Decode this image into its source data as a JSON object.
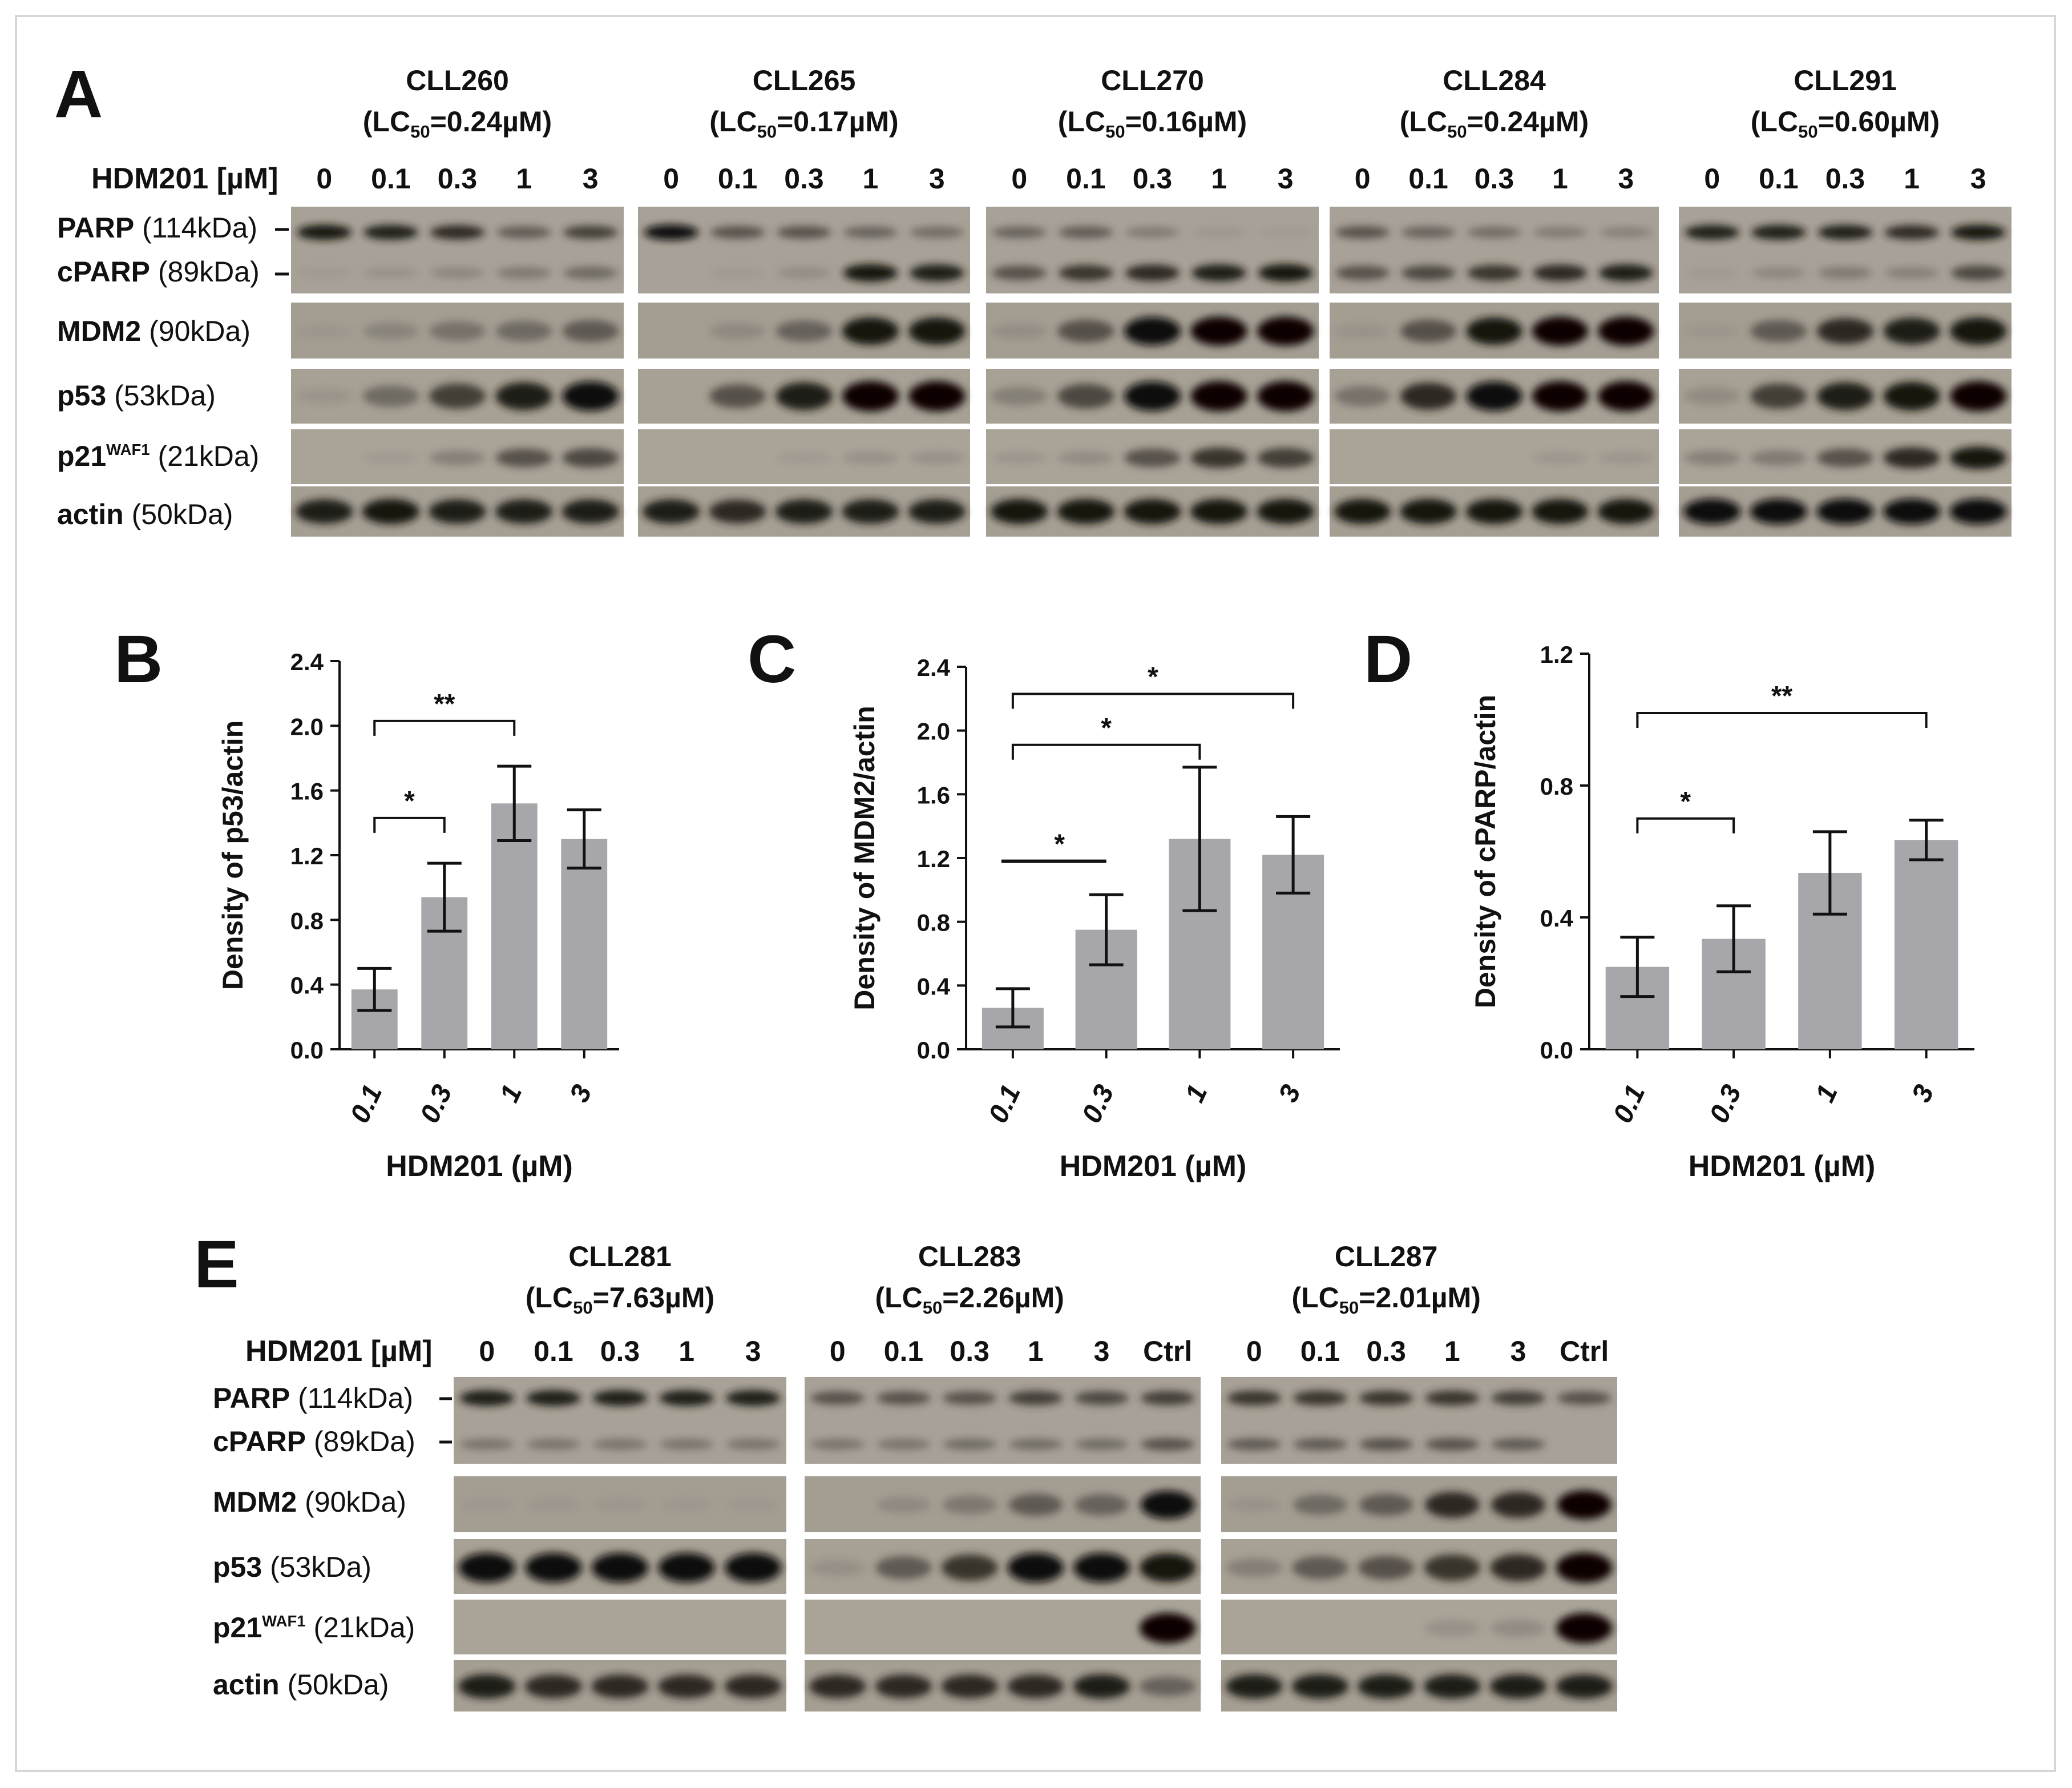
{
  "panel_letters": [
    "A",
    "B",
    "C",
    "D",
    "E"
  ],
  "markers": {
    "parp": {
      "name": "PARP",
      "mw": "(114kDa)"
    },
    "cparp": {
      "name": "cPARP",
      "mw": "(89kDa)"
    },
    "mdm2": {
      "name": "MDM2",
      "mw": "(90kDa)"
    },
    "p53": {
      "name": "p53",
      "mw": "(53kDa)"
    },
    "p21": {
      "name": "p21",
      "sup": "WAF1",
      "mw": "(21kDa)"
    },
    "actin": {
      "name": "actin",
      "mw": "(50kDa)"
    }
  },
  "dose_label": "HDM201 [µM]",
  "lc_prefix": "(LC",
  "lc_sub": "50",
  "panel_a": {
    "doses": [
      "0",
      "0.1",
      "0.3",
      "1",
      "3"
    ],
    "patients": [
      {
        "id": "CLL260",
        "lc50": "=0.24µM)",
        "intensity": {
          "parp": [
            0.9,
            0.85,
            0.8,
            0.55,
            0.7
          ],
          "cparp": [
            0.05,
            0.15,
            0.25,
            0.35,
            0.45
          ],
          "mdm2": [
            0.05,
            0.25,
            0.4,
            0.45,
            0.55
          ],
          "p53": [
            0.1,
            0.45,
            0.7,
            0.85,
            0.95
          ],
          "p21": [
            0.0,
            0.05,
            0.3,
            0.6,
            0.65
          ],
          "actin": [
            0.85,
            0.9,
            0.85,
            0.85,
            0.85
          ]
        }
      },
      {
        "id": "CLL265",
        "lc50": "=0.17µM)",
        "intensity": {
          "parp": [
            0.95,
            0.6,
            0.6,
            0.5,
            0.45
          ],
          "cparp": [
            0.0,
            0.05,
            0.2,
            0.9,
            0.85
          ],
          "mdm2": [
            0.0,
            0.2,
            0.5,
            0.9,
            0.9
          ],
          "p53": [
            0.0,
            0.6,
            0.85,
            1.0,
            1.0
          ],
          "p21": [
            0.0,
            0.0,
            0.05,
            0.15,
            0.15
          ],
          "actin": [
            0.85,
            0.8,
            0.85,
            0.85,
            0.85
          ]
        }
      },
      {
        "id": "CLL270",
        "lc50": "=0.16µM)",
        "intensity": {
          "parp": [
            0.5,
            0.55,
            0.35,
            0.1,
            0.05
          ],
          "cparp": [
            0.6,
            0.75,
            0.8,
            0.85,
            0.9
          ],
          "mdm2": [
            0.15,
            0.6,
            0.95,
            1.0,
            1.0
          ],
          "p53": [
            0.3,
            0.65,
            0.95,
            1.0,
            1.0
          ],
          "p21": [
            0.1,
            0.2,
            0.6,
            0.75,
            0.7
          ],
          "actin": [
            0.9,
            0.9,
            0.9,
            0.9,
            0.9
          ]
        }
      },
      {
        "id": "CLL284",
        "lc50": "=0.24µM)",
        "intensity": {
          "parp": [
            0.6,
            0.5,
            0.45,
            0.35,
            0.3
          ],
          "cparp": [
            0.6,
            0.65,
            0.75,
            0.8,
            0.85
          ],
          "mdm2": [
            0.1,
            0.6,
            0.9,
            1.0,
            1.0
          ],
          "p53": [
            0.4,
            0.8,
            0.95,
            1.0,
            1.0
          ],
          "p21": [
            0.0,
            0.0,
            0.0,
            0.1,
            0.1
          ],
          "actin": [
            0.9,
            0.9,
            0.9,
            0.9,
            0.9
          ]
        }
      },
      {
        "id": "CLL291",
        "lc50": "=0.60µM)",
        "intensity": {
          "parp": [
            0.85,
            0.85,
            0.85,
            0.8,
            0.9
          ],
          "cparp": [
            0.05,
            0.25,
            0.35,
            0.3,
            0.65
          ],
          "mdm2": [
            0.05,
            0.55,
            0.8,
            0.85,
            0.9
          ],
          "p53": [
            0.2,
            0.7,
            0.85,
            0.9,
            1.0
          ],
          "p21": [
            0.3,
            0.35,
            0.6,
            0.8,
            0.9
          ],
          "actin": [
            0.95,
            0.95,
            0.95,
            0.95,
            0.95
          ]
        }
      }
    ]
  },
  "panel_e": {
    "doses": [
      "0",
      "0.1",
      "0.3",
      "1",
      "3",
      "Ctrl"
    ],
    "patients": [
      {
        "id": "CLL281",
        "lc50": "=7.63µM)",
        "lanes": 5,
        "intensity": {
          "parp": [
            0.85,
            0.85,
            0.85,
            0.85,
            0.85
          ],
          "cparp": [
            0.4,
            0.4,
            0.4,
            0.4,
            0.4
          ],
          "mdm2": [
            0.02,
            0.05,
            0.04,
            0.03,
            0.02
          ],
          "p53": [
            0.95,
            0.95,
            0.95,
            0.95,
            0.95
          ],
          "p21": [
            0,
            0,
            0,
            0,
            0
          ],
          "actin": [
            0.85,
            0.8,
            0.8,
            0.8,
            0.8
          ]
        }
      },
      {
        "id": "CLL283",
        "lc50": "=2.26µM)",
        "lanes": 6,
        "intensity": {
          "parp": [
            0.6,
            0.6,
            0.6,
            0.7,
            0.65,
            0.7
          ],
          "cparp": [
            0.4,
            0.4,
            0.45,
            0.45,
            0.45,
            0.6
          ],
          "mdm2": [
            0.0,
            0.2,
            0.35,
            0.55,
            0.5,
            0.95
          ],
          "p53": [
            0.15,
            0.55,
            0.75,
            0.95,
            0.95,
            0.9
          ],
          "p21": [
            0,
            0,
            0,
            0,
            0,
            1.0
          ],
          "actin": [
            0.8,
            0.8,
            0.8,
            0.8,
            0.85,
            0.5
          ]
        }
      },
      {
        "id": "CLL287",
        "lc50": "=2.01µM)",
        "lanes": 6,
        "intensity": {
          "parp": [
            0.75,
            0.75,
            0.75,
            0.75,
            0.7,
            0.6
          ],
          "cparp": [
            0.55,
            0.55,
            0.6,
            0.6,
            0.55,
            0.0
          ],
          "mdm2": [
            0.1,
            0.45,
            0.55,
            0.8,
            0.8,
            1.0
          ],
          "p53": [
            0.3,
            0.55,
            0.6,
            0.75,
            0.8,
            1.0
          ],
          "p21": [
            0,
            0,
            0,
            0.15,
            0.2,
            1.0
          ],
          "actin": [
            0.85,
            0.85,
            0.85,
            0.85,
            0.85,
            0.85
          ]
        }
      }
    ]
  },
  "chart_data": [
    {
      "panel": "B",
      "type": "bar",
      "categories": [
        "0.1",
        "0.3",
        "1",
        "3"
      ],
      "values": [
        0.37,
        0.94,
        1.52,
        1.3
      ],
      "errors": [
        0.13,
        0.21,
        0.23,
        0.18
      ],
      "ylim": [
        0,
        2.4
      ],
      "yticks": [
        "0.0",
        "0.4",
        "0.8",
        "1.2",
        "1.6",
        "2.0",
        "2.4"
      ],
      "ylabel": "Density of p53/actin",
      "xlabel": "HDM201 (µM)",
      "significance": [
        {
          "from": 0,
          "to": 1,
          "y": 1.43,
          "label": "*"
        },
        {
          "from": 0,
          "to": 2,
          "y": 2.03,
          "label": "**"
        }
      ]
    },
    {
      "panel": "C",
      "type": "bar",
      "categories": [
        "0.1",
        "0.3",
        "1",
        "3"
      ],
      "values": [
        0.26,
        0.75,
        1.32,
        1.22
      ],
      "errors": [
        0.12,
        0.22,
        0.45,
        0.24
      ],
      "ylim": [
        0,
        2.4
      ],
      "yticks": [
        "0.0",
        "0.4",
        "0.8",
        "1.2",
        "1.6",
        "2.0",
        "2.4"
      ],
      "ylabel": "Density of MDM2/actin",
      "xlabel": "HDM201 (µM)",
      "significance": [
        {
          "from": 0,
          "to": 1,
          "y": 1.18,
          "label": "*",
          "flat": true
        },
        {
          "from": 0,
          "to": 2,
          "y": 1.91,
          "label": "*"
        },
        {
          "from": 0,
          "to": 3,
          "y": 2.23,
          "label": "*"
        }
      ]
    },
    {
      "panel": "D",
      "type": "bar",
      "categories": [
        "0.1",
        "0.3",
        "1",
        "3"
      ],
      "values": [
        0.25,
        0.335,
        0.535,
        0.635
      ],
      "errors": [
        0.09,
        0.1,
        0.125,
        0.06
      ],
      "ylim": [
        0,
        1.2
      ],
      "yticks": [
        "0.0",
        "0.4",
        "0.8",
        "1.2"
      ],
      "ylabel": "Density of cPARP/actin",
      "xlabel": "HDM201 (µM)",
      "significance": [
        {
          "from": 0,
          "to": 1,
          "y": 0.7,
          "label": "*"
        },
        {
          "from": 0,
          "to": 3,
          "y": 1.02,
          "label": "**"
        }
      ]
    }
  ]
}
